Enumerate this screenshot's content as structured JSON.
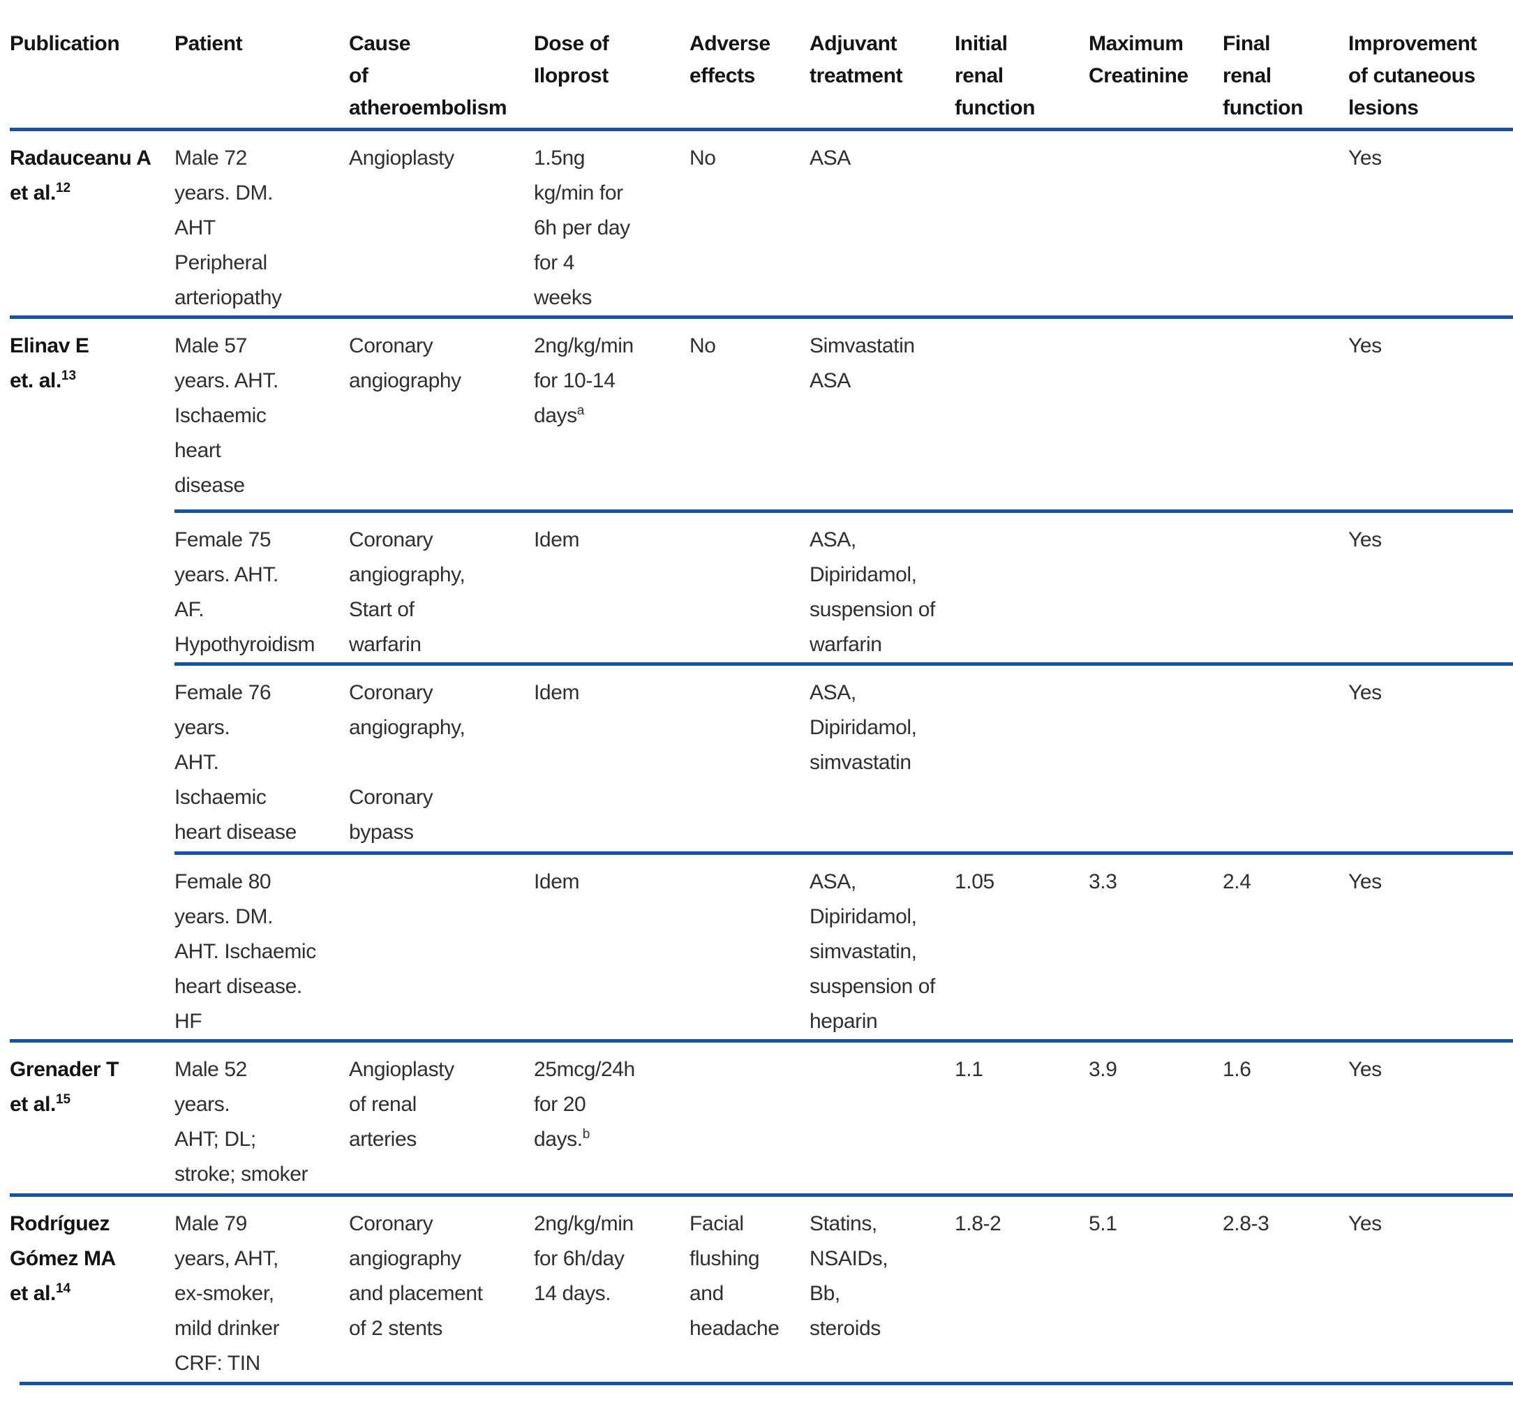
{
  "page": {
    "rule_color": "#1553a4",
    "text_color": "#2f2f2f"
  },
  "table": {
    "columns": [
      "Publication",
      "Patient",
      "Cause\nof\natheroembolism",
      "Dose of\nIloprost",
      "Adverse\neffects",
      "Adjuvant\ntreatment",
      "Initial\nrenal\nfunction",
      "Maximum\nCreatinine",
      "Final\nrenal\nfunction",
      "Improvement\nof cutaneous\nlesions"
    ],
    "rows": [
      {
        "publication": {
          "lines": "Radauceanu A\net al.",
          "ref": "12"
        },
        "patient": "Male 72\nyears. DM.\nAHT\nPeripheral\narteriopathy",
        "cause": "Angioplasty",
        "dose": {
          "lines": "1.5ng\nkg/min for\n6h per day\nfor 4\nweeks"
        },
        "adverse": "No",
        "adjuvant": "ASA",
        "initial_renal": "",
        "max_creatinine": "",
        "final_renal": "",
        "improvement": "Yes"
      },
      {
        "publication": {
          "lines": "Elinav E\net. al.",
          "ref": "13"
        },
        "patient": "Male 57\nyears. AHT.\nIschaemic\nheart\ndisease",
        "cause": "Coronary\nangiography",
        "dose": {
          "lines": "2ng/kg/min\nfor 10-14\ndays",
          "sup": "a"
        },
        "adverse": "No",
        "adjuvant": "Simvastatin\nASA",
        "initial_renal": "",
        "max_creatinine": "",
        "final_renal": "",
        "improvement": "Yes"
      },
      {
        "patient": "Female 75\nyears. AHT.\nAF.\nHypothyroidism",
        "cause": "Coronary\nangiography,\nStart of\nwarfarin",
        "dose": {
          "lines": "Idem"
        },
        "adverse": "",
        "adjuvant": "ASA,\nDipiridamol,\nsuspension of\nwarfarin",
        "initial_renal": "",
        "max_creatinine": "",
        "final_renal": "",
        "improvement": "Yes"
      },
      {
        "patient": "Female 76\nyears.\nAHT.\nIschaemic\nheart disease",
        "cause": "Coronary\nangiography,\n\nCoronary\nbypass",
        "dose": {
          "lines": "Idem"
        },
        "adverse": "",
        "adjuvant": "ASA,\nDipiridamol,\nsimvastatin",
        "initial_renal": "",
        "max_creatinine": "",
        "final_renal": "",
        "improvement": "Yes"
      },
      {
        "patient": "Female 80\nyears. DM.\nAHT.  Ischaemic\nheart disease.\nHF",
        "cause": "",
        "dose": {
          "lines": "Idem"
        },
        "adverse": "",
        "adjuvant": "ASA,\nDipiridamol,\nsimvastatin,\nsuspension of\nheparin",
        "initial_renal": "1.05",
        "max_creatinine": "3.3",
        "final_renal": "2.4",
        "improvement": "Yes"
      },
      {
        "publication": {
          "lines": "Grenader T\net al.",
          "ref": "15"
        },
        "patient": "Male 52\nyears.\nAHT; DL;\nstroke; smoker",
        "cause": "Angioplasty\nof renal\narteries",
        "dose": {
          "lines": "25mcg/24h\nfor 20\ndays.",
          "sup": "b"
        },
        "adverse": "",
        "adjuvant": "",
        "initial_renal": "1.1",
        "max_creatinine": "3.9",
        "final_renal": "1.6",
        "improvement": "Yes"
      },
      {
        "publication": {
          "lines": "Rodríguez\nGómez MA\net al.",
          "ref": "14"
        },
        "patient": "Male 79\nyears, AHT,\nex-smoker,\nmild drinker\nCRF: TIN",
        "cause": "Coronary\nangiography\nand placement\nof 2 stents",
        "dose": {
          "lines": "2ng/kg/min\nfor 6h/day\n14 days."
        },
        "adverse": "Facial\nflushing\nand\nheadache",
        "adjuvant": "Statins,\nNSAIDs,\nBb,\nsteroids",
        "initial_renal": "1.8-2",
        "max_creatinine": "5.1",
        "final_renal": "2.8-3",
        "improvement": "Yes"
      }
    ]
  }
}
